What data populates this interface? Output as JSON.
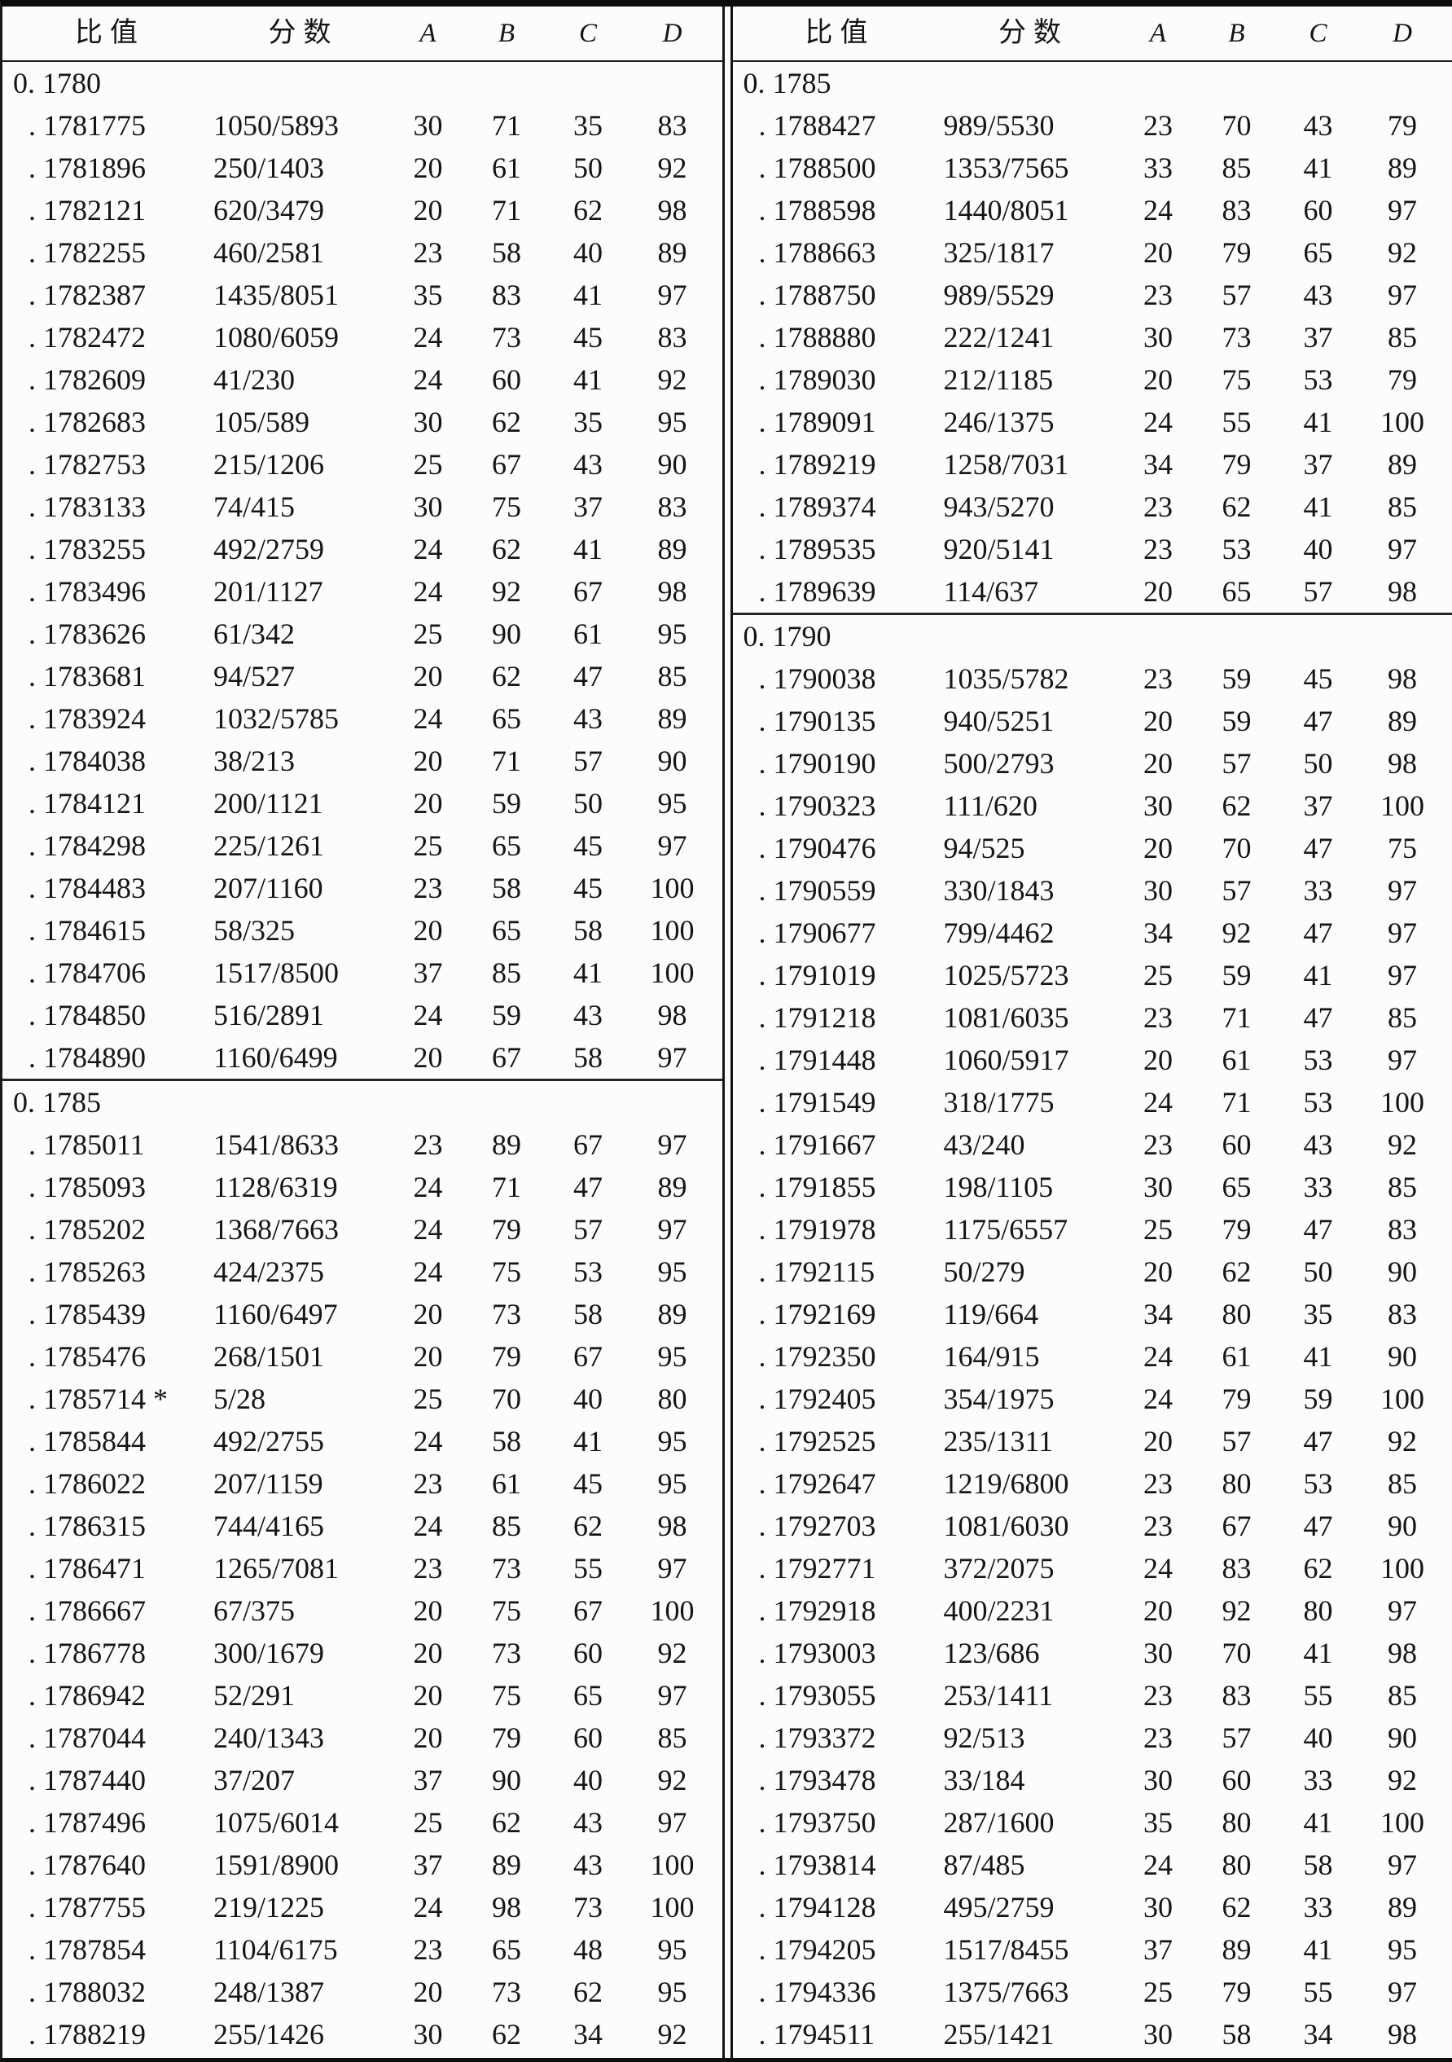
{
  "table": {
    "columns": [
      "比值",
      "分数",
      "A",
      "B",
      "C",
      "D"
    ],
    "panels": [
      {
        "sections": [
          {
            "header": "0. 1780",
            "rows": [
              [
                ". 1781775",
                "1050/5893",
                "30",
                "71",
                "35",
                "83"
              ],
              [
                ". 1781896",
                "250/1403",
                "20",
                "61",
                "50",
                "92"
              ],
              [
                ". 1782121",
                "620/3479",
                "20",
                "71",
                "62",
                "98"
              ],
              [
                ". 1782255",
                "460/2581",
                "23",
                "58",
                "40",
                "89"
              ],
              [
                ". 1782387",
                "1435/8051",
                "35",
                "83",
                "41",
                "97"
              ],
              [
                ". 1782472",
                "1080/6059",
                "24",
                "73",
                "45",
                "83"
              ],
              [
                ". 1782609",
                "41/230",
                "24",
                "60",
                "41",
                "92"
              ],
              [
                ". 1782683",
                "105/589",
                "30",
                "62",
                "35",
                "95"
              ],
              [
                ". 1782753",
                "215/1206",
                "25",
                "67",
                "43",
                "90"
              ],
              [
                ". 1783133",
                "74/415",
                "30",
                "75",
                "37",
                "83"
              ],
              [
                ". 1783255",
                "492/2759",
                "24",
                "62",
                "41",
                "89"
              ],
              [
                ". 1783496",
                "201/1127",
                "24",
                "92",
                "67",
                "98"
              ],
              [
                ". 1783626",
                "61/342",
                "25",
                "90",
                "61",
                "95"
              ],
              [
                ". 1783681",
                "94/527",
                "20",
                "62",
                "47",
                "85"
              ],
              [
                ". 1783924",
                "1032/5785",
                "24",
                "65",
                "43",
                "89"
              ],
              [
                ". 1784038",
                "38/213",
                "20",
                "71",
                "57",
                "90"
              ],
              [
                ". 1784121",
                "200/1121",
                "20",
                "59",
                "50",
                "95"
              ],
              [
                ". 1784298",
                "225/1261",
                "25",
                "65",
                "45",
                "97"
              ],
              [
                ". 1784483",
                "207/1160",
                "23",
                "58",
                "45",
                "100"
              ],
              [
                ". 1784615",
                "58/325",
                "20",
                "65",
                "58",
                "100"
              ],
              [
                ". 1784706",
                "1517/8500",
                "37",
                "85",
                "41",
                "100"
              ],
              [
                ". 1784850",
                "516/2891",
                "24",
                "59",
                "43",
                "98"
              ],
              [
                ". 1784890",
                "1160/6499",
                "20",
                "67",
                "58",
                "97"
              ]
            ]
          },
          {
            "header": "0. 1785",
            "rows": [
              [
                ". 1785011",
                "1541/8633",
                "23",
                "89",
                "67",
                "97"
              ],
              [
                ". 1785093",
                "1128/6319",
                "24",
                "71",
                "47",
                "89"
              ],
              [
                ". 1785202",
                "1368/7663",
                "24",
                "79",
                "57",
                "97"
              ],
              [
                ". 1785263",
                "424/2375",
                "24",
                "75",
                "53",
                "95"
              ],
              [
                ". 1785439",
                "1160/6497",
                "20",
                "73",
                "58",
                "89"
              ],
              [
                ". 1785476",
                "268/1501",
                "20",
                "79",
                "67",
                "95"
              ],
              [
                ". 1785714 *",
                "5/28",
                "25",
                "70",
                "40",
                "80"
              ],
              [
                ". 1785844",
                "492/2755",
                "24",
                "58",
                "41",
                "95"
              ],
              [
                ". 1786022",
                "207/1159",
                "23",
                "61",
                "45",
                "95"
              ],
              [
                ". 1786315",
                "744/4165",
                "24",
                "85",
                "62",
                "98"
              ],
              [
                ". 1786471",
                "1265/7081",
                "23",
                "73",
                "55",
                "97"
              ],
              [
                ". 1786667",
                "67/375",
                "20",
                "75",
                "67",
                "100"
              ],
              [
                ". 1786778",
                "300/1679",
                "20",
                "73",
                "60",
                "92"
              ],
              [
                ". 1786942",
                "52/291",
                "20",
                "75",
                "65",
                "97"
              ],
              [
                ". 1787044",
                "240/1343",
                "20",
                "79",
                "60",
                "85"
              ],
              [
                ". 1787440",
                "37/207",
                "37",
                "90",
                "40",
                "92"
              ],
              [
                ". 1787496",
                "1075/6014",
                "25",
                "62",
                "43",
                "97"
              ],
              [
                ". 1787640",
                "1591/8900",
                "37",
                "89",
                "43",
                "100"
              ],
              [
                ". 1787755",
                "219/1225",
                "24",
                "98",
                "73",
                "100"
              ],
              [
                ". 1787854",
                "1104/6175",
                "23",
                "65",
                "48",
                "95"
              ],
              [
                ". 1788032",
                "248/1387",
                "20",
                "73",
                "62",
                "95"
              ],
              [
                ". 1788219",
                "255/1426",
                "30",
                "62",
                "34",
                "92"
              ]
            ]
          }
        ]
      },
      {
        "sections": [
          {
            "header": "0. 1785",
            "rows": [
              [
                ". 1788427",
                "989/5530",
                "23",
                "70",
                "43",
                "79"
              ],
              [
                ". 1788500",
                "1353/7565",
                "33",
                "85",
                "41",
                "89"
              ],
              [
                ". 1788598",
                "1440/8051",
                "24",
                "83",
                "60",
                "97"
              ],
              [
                ". 1788663",
                "325/1817",
                "20",
                "79",
                "65",
                "92"
              ],
              [
                ". 1788750",
                "989/5529",
                "23",
                "57",
                "43",
                "97"
              ],
              [
                ". 1788880",
                "222/1241",
                "30",
                "73",
                "37",
                "85"
              ],
              [
                ". 1789030",
                "212/1185",
                "20",
                "75",
                "53",
                "79"
              ],
              [
                ". 1789091",
                "246/1375",
                "24",
                "55",
                "41",
                "100"
              ],
              [
                ". 1789219",
                "1258/7031",
                "34",
                "79",
                "37",
                "89"
              ],
              [
                ". 1789374",
                "943/5270",
                "23",
                "62",
                "41",
                "85"
              ],
              [
                ". 1789535",
                "920/5141",
                "23",
                "53",
                "40",
                "97"
              ],
              [
                ". 1789639",
                "114/637",
                "20",
                "65",
                "57",
                "98"
              ]
            ]
          },
          {
            "header": "0. 1790",
            "rows": [
              [
                ". 1790038",
                "1035/5782",
                "23",
                "59",
                "45",
                "98"
              ],
              [
                ". 1790135",
                "940/5251",
                "20",
                "59",
                "47",
                "89"
              ],
              [
                ". 1790190",
                "500/2793",
                "20",
                "57",
                "50",
                "98"
              ],
              [
                ". 1790323",
                "111/620",
                "30",
                "62",
                "37",
                "100"
              ],
              [
                ". 1790476",
                "94/525",
                "20",
                "70",
                "47",
                "75"
              ],
              [
                ". 1790559",
                "330/1843",
                "30",
                "57",
                "33",
                "97"
              ],
              [
                ". 1790677",
                "799/4462",
                "34",
                "92",
                "47",
                "97"
              ],
              [
                ". 1791019",
                "1025/5723",
                "25",
                "59",
                "41",
                "97"
              ],
              [
                ". 1791218",
                "1081/6035",
                "23",
                "71",
                "47",
                "85"
              ],
              [
                ". 1791448",
                "1060/5917",
                "20",
                "61",
                "53",
                "97"
              ],
              [
                ". 1791549",
                "318/1775",
                "24",
                "71",
                "53",
                "100"
              ],
              [
                ". 1791667",
                "43/240",
                "23",
                "60",
                "43",
                "92"
              ],
              [
                ". 1791855",
                "198/1105",
                "30",
                "65",
                "33",
                "85"
              ],
              [
                ". 1791978",
                "1175/6557",
                "25",
                "79",
                "47",
                "83"
              ],
              [
                ". 1792115",
                "50/279",
                "20",
                "62",
                "50",
                "90"
              ],
              [
                ". 1792169",
                "119/664",
                "34",
                "80",
                "35",
                "83"
              ],
              [
                ". 1792350",
                "164/915",
                "24",
                "61",
                "41",
                "90"
              ],
              [
                ". 1792405",
                "354/1975",
                "24",
                "79",
                "59",
                "100"
              ],
              [
                ". 1792525",
                "235/1311",
                "20",
                "57",
                "47",
                "92"
              ],
              [
                ". 1792647",
                "1219/6800",
                "23",
                "80",
                "53",
                "85"
              ],
              [
                ". 1792703",
                "1081/6030",
                "23",
                "67",
                "47",
                "90"
              ],
              [
                ". 1792771",
                "372/2075",
                "24",
                "83",
                "62",
                "100"
              ],
              [
                ". 1792918",
                "400/2231",
                "20",
                "92",
                "80",
                "97"
              ],
              [
                ". 1793003",
                "123/686",
                "30",
                "70",
                "41",
                "98"
              ],
              [
                ". 1793055",
                "253/1411",
                "23",
                "83",
                "55",
                "85"
              ],
              [
                ". 1793372",
                "92/513",
                "23",
                "57",
                "40",
                "90"
              ],
              [
                ". 1793478",
                "33/184",
                "30",
                "60",
                "33",
                "92"
              ],
              [
                ". 1793750",
                "287/1600",
                "35",
                "80",
                "41",
                "100"
              ],
              [
                ". 1793814",
                "87/485",
                "24",
                "80",
                "58",
                "97"
              ],
              [
                ". 1794128",
                "495/2759",
                "30",
                "62",
                "33",
                "89"
              ],
              [
                ". 1794205",
                "1517/8455",
                "37",
                "89",
                "41",
                "95"
              ],
              [
                ". 1794336",
                "1375/7663",
                "25",
                "79",
                "55",
                "97"
              ],
              [
                ". 1794511",
                "255/1421",
                "30",
                "58",
                "34",
                "98"
              ]
            ]
          }
        ]
      }
    ]
  }
}
